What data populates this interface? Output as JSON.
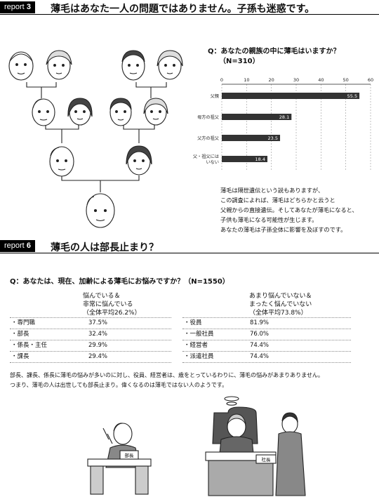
{
  "report3": {
    "badge_prefix": "report",
    "badge_num": "3",
    "title": "薄毛はあなた一人の問題ではありません。子孫も迷惑です。"
  },
  "survey1": {
    "question": "Q：あなたの親族の中に薄毛はいますか？",
    "sample": "（N=310）",
    "commentary": [
      "薄毛は隔世遺伝という説もありますが、",
      "この調査によれば、薄毛はどちらかと云うと",
      "父親からの直接遺伝。そしてあなたが薄毛になると、",
      "子供も薄毛になる可能性が生じます。",
      "あなたの薄毛は子孫全体に影響を及ぼすのです。"
    ]
  },
  "chart_data": {
    "type": "bar",
    "orientation": "horizontal",
    "categories": [
      "父親",
      "母方の祖父",
      "父方の祖父",
      "父・祖父には\nいない"
    ],
    "values": [
      55.5,
      28.1,
      23.5,
      18.4
    ],
    "value_labels": [
      "55.5",
      "28.1",
      "23.5",
      "18.4"
    ],
    "xlim": [
      0,
      60
    ],
    "xticks": [
      "0",
      "10",
      "20",
      "30",
      "40",
      "50",
      "60"
    ],
    "bar_color": "#333333",
    "grid": true
  },
  "report6": {
    "badge_prefix": "report",
    "badge_num": "6",
    "title": "薄毛の人は部長止まり？"
  },
  "survey2": {
    "question": "Q：あなたは、現在、加齢による薄毛にお悩みですか？（N=1550）",
    "left_header": [
      "悩んでいる＆",
      "非常に悩んでいる",
      "（全体平均26.2%）"
    ],
    "right_header": [
      "あまり悩んでいない＆",
      "まったく悩んでいない",
      "（全体平均73.8%）"
    ],
    "left_rows": [
      {
        "label": "・専門職",
        "value": "37.5%"
      },
      {
        "label": "・部長",
        "value": "32.4%"
      },
      {
        "label": "・係長・主任",
        "value": "29.9%"
      },
      {
        "label": "・課長",
        "value": "29.4%"
      }
    ],
    "right_rows": [
      {
        "label": "・役員",
        "value": "81.9%"
      },
      {
        "label": "・一般社員",
        "value": "76.0%"
      },
      {
        "label": "・経営者",
        "value": "74.4%"
      },
      {
        "label": "・派遣社員",
        "value": "74.4%"
      }
    ],
    "summary": [
      "部長、課長、係長に薄毛の悩みが多いのに対し、役員、経営者は、歳をとっているわりに、薄毛の悩みがあまりありません。",
      "つまり、薄毛の人は出世しても部長止まり。偉くなるのは薄毛ではない人のようです。"
    ]
  },
  "illustrations": {
    "left_plaque": "部長",
    "right_plaque": "社長"
  }
}
